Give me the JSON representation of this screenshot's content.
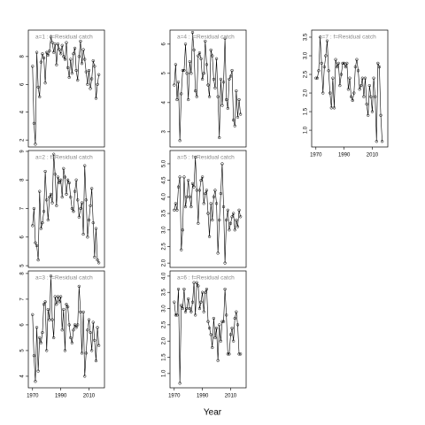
{
  "xlabel": "Year",
  "chart_data": [
    {
      "type": "line",
      "title": "a=1 : f=Residual catch",
      "x": [
        1970,
        1971,
        1972,
        1973,
        1974,
        1975,
        1976,
        1977,
        1978,
        1979,
        1980,
        1981,
        1982,
        1983,
        1984,
        1985,
        1986,
        1987,
        1988,
        1989,
        1990,
        1991,
        1992,
        1993,
        1994,
        1995,
        1996,
        1997,
        1998,
        1999,
        2000,
        2001,
        2002,
        2003,
        2004,
        2005,
        2006,
        2007,
        2008,
        2009,
        2010,
        2011,
        2012,
        2013,
        2014,
        2015,
        2016,
        2017
      ],
      "values": [
        7.3,
        3.2,
        1.7,
        8.3,
        5.8,
        5.1,
        7.6,
        8.2,
        7.9,
        6.1,
        8.3,
        8.1,
        8.4,
        9.4,
        9.0,
        8.3,
        8.9,
        7.4,
        8.9,
        8.5,
        8.2,
        8.8,
        8.0,
        7.8,
        9.0,
        7.2,
        6.5,
        7.8,
        6.8,
        8.2,
        8.6,
        7.0,
        6.3,
        8.0,
        9.1,
        7.5,
        8.5,
        7.8,
        6.9,
        6.0,
        7.0,
        5.7,
        6.4,
        7.7,
        7.3,
        5.0,
        6.0,
        6.7
      ],
      "xlim": [
        1967,
        2021
      ],
      "ylim": [
        1.5,
        9.9
      ],
      "yticks": [
        2,
        4,
        6,
        8
      ]
    },
    {
      "type": "line",
      "title": "a=2 : f=Residual catch",
      "x": [
        1970,
        1971,
        1972,
        1973,
        1974,
        1975,
        1976,
        1977,
        1978,
        1979,
        1980,
        1981,
        1982,
        1983,
        1984,
        1985,
        1986,
        1987,
        1988,
        1989,
        1990,
        1991,
        1992,
        1993,
        1994,
        1995,
        1996,
        1997,
        1998,
        1999,
        2000,
        2001,
        2002,
        2003,
        2004,
        2005,
        2006,
        2007,
        2008,
        2009,
        2010,
        2011,
        2012,
        2013,
        2014,
        2015,
        2016,
        2017
      ],
      "values": [
        6.4,
        7.0,
        5.8,
        5.7,
        5.2,
        7.6,
        6.3,
        6.5,
        6.9,
        8.3,
        7.3,
        6.6,
        7.4,
        7.5,
        7.2,
        8.9,
        8.2,
        7.1,
        8.1,
        7.9,
        8.0,
        7.4,
        8.4,
        8.1,
        7.5,
        8.0,
        7.9,
        7.4,
        7.0,
        6.9,
        7.6,
        8.0,
        7.3,
        6.7,
        7.0,
        7.2,
        6.1,
        8.5,
        7.3,
        6.0,
        6.6,
        7.1,
        7.7,
        6.5,
        5.3,
        6.3,
        5.2,
        5.1
      ],
      "xlim": [
        1967,
        2021
      ],
      "ylim": [
        4.94,
        9.03
      ],
      "yticks": [
        5,
        6,
        7,
        8,
        9
      ]
    },
    {
      "type": "line",
      "title": "a=3 : f=Residual catch",
      "x": [
        1970,
        1971,
        1972,
        1973,
        1974,
        1975,
        1976,
        1977,
        1978,
        1979,
        1980,
        1981,
        1982,
        1983,
        1984,
        1985,
        1986,
        1987,
        1988,
        1989,
        1990,
        1991,
        1992,
        1993,
        1994,
        1995,
        1996,
        1997,
        1998,
        1999,
        2000,
        2001,
        2002,
        2003,
        2004,
        2005,
        2006,
        2007,
        2008,
        2009,
        2010,
        2011,
        2012,
        2013,
        2014,
        2015,
        2016,
        2017
      ],
      "values": [
        6.4,
        4.8,
        3.8,
        5.9,
        4.2,
        5.5,
        5.3,
        5.7,
        6.8,
        6.9,
        5.0,
        6.6,
        6.2,
        7.9,
        6.2,
        5.5,
        7.1,
        6.8,
        7.1,
        6.9,
        7.1,
        5.8,
        6.6,
        5.0,
        6.8,
        6.7,
        6.0,
        5.5,
        5.3,
        5.8,
        6.0,
        5.9,
        6.0,
        7.5,
        6.5,
        4.9,
        6.5,
        4.0,
        4.9,
        5.8,
        6.2,
        5.7,
        5.0,
        6.1,
        5.4,
        4.6,
        5.9,
        5.2
      ],
      "xlim": [
        1967,
        2021
      ],
      "ylim": [
        3.55,
        8.1
      ],
      "xticks": [
        1970,
        1990,
        2010
      ],
      "yticks": [
        4,
        5,
        6,
        7,
        8
      ]
    },
    {
      "type": "line",
      "title": "a=4 : f=Residual catch",
      "x": [
        1970,
        1971,
        1972,
        1973,
        1974,
        1975,
        1976,
        1977,
        1978,
        1979,
        1980,
        1981,
        1982,
        1983,
        1984,
        1985,
        1986,
        1987,
        1988,
        1989,
        1990,
        1991,
        1992,
        1993,
        1994,
        1995,
        1996,
        1997,
        1998,
        1999,
        2000,
        2001,
        2002,
        2003,
        2004,
        2005,
        2006,
        2007,
        2008,
        2009,
        2010,
        2011,
        2012,
        2013,
        2014,
        2015,
        2016,
        2017
      ],
      "values": [
        4.6,
        5.3,
        4.1,
        4.7,
        2.7,
        4.3,
        5.1,
        5.1,
        6.0,
        5.0,
        4.1,
        5.4,
        5.0,
        6.4,
        5.8,
        4.4,
        4.2,
        5.6,
        5.7,
        5.5,
        4.8,
        5.0,
        6.1,
        5.3,
        4.6,
        4.2,
        5.8,
        5.6,
        4.8,
        4.5,
        5.5,
        4.2,
        2.8,
        4.8,
        3.9,
        4.7,
        6.2,
        4.1,
        3.8,
        4.8,
        4.9,
        5.1,
        3.4,
        3.2,
        4.4,
        3.5,
        4.1,
        3.6
      ],
      "xlim": [
        1967,
        2021
      ],
      "ylim": [
        2.48,
        6.48
      ],
      "yticks": [
        3,
        4,
        5,
        6
      ]
    },
    {
      "type": "line",
      "title": "a=5 : f=Residual catch",
      "x": [
        1970,
        1971,
        1972,
        1973,
        1974,
        1975,
        1976,
        1977,
        1978,
        1979,
        1980,
        1981,
        1982,
        1983,
        1984,
        1985,
        1986,
        1987,
        1988,
        1989,
        1990,
        1991,
        1992,
        1993,
        1994,
        1995,
        1996,
        1997,
        1998,
        1999,
        2000,
        2001,
        2002,
        2003,
        2004,
        2005,
        2006,
        2007,
        2008,
        2009,
        2010,
        2011,
        2012,
        2013,
        2014,
        2015,
        2016,
        2017
      ],
      "values": [
        3.6,
        3.8,
        3.6,
        4.3,
        4.6,
        2.4,
        3.0,
        4.6,
        3.7,
        4.0,
        4.5,
        4.0,
        3.7,
        4.4,
        4.3,
        5.2,
        4.2,
        3.2,
        4.2,
        4.5,
        4.6,
        3.8,
        4.1,
        4.2,
        3.5,
        2.8,
        3.8,
        3.3,
        4.0,
        4.2,
        3.8,
        2.3,
        3.3,
        4.1,
        5.0,
        3.7,
        2.0,
        3.3,
        3.6,
        3.0,
        3.2,
        3.4,
        3.5,
        3.0,
        3.3,
        3.1,
        3.6,
        3.4
      ],
      "xlim": [
        1967,
        2021
      ],
      "ylim": [
        1.87,
        5.4
      ],
      "yticks": [
        {
          "value": 2,
          "label": "2.0"
        },
        2.5,
        {
          "value": 3,
          "label": "3.0"
        },
        3.5,
        {
          "value": 4,
          "label": "4.0"
        },
        4.5,
        {
          "value": 5,
          "label": "5.0"
        }
      ]
    },
    {
      "type": "line",
      "title": "a=6 : f=Residual catch",
      "x": [
        1970,
        1971,
        1972,
        1973,
        1974,
        1975,
        1976,
        1977,
        1978,
        1979,
        1980,
        1981,
        1982,
        1983,
        1984,
        1985,
        1986,
        1987,
        1988,
        1989,
        1990,
        1991,
        1992,
        1993,
        1994,
        1995,
        1996,
        1997,
        1998,
        1999,
        2000,
        2001,
        2002,
        2003,
        2004,
        2005,
        2006,
        2007,
        2008,
        2009,
        2010,
        2011,
        2012,
        2013,
        2014,
        2015,
        2016,
        2017
      ],
      "values": [
        3.2,
        2.8,
        2.8,
        3.6,
        0.7,
        3.1,
        3.0,
        3.6,
        2.9,
        3.0,
        3.3,
        3.0,
        2.9,
        3.2,
        3.8,
        2.8,
        3.8,
        3.7,
        3.0,
        3.2,
        3.5,
        2.9,
        3.5,
        3.6,
        2.6,
        2.4,
        2.2,
        1.8,
        2.7,
        2.1,
        2.4,
        1.4,
        2.5,
        2.0,
        2.6,
        2.6,
        3.6,
        2.8,
        1.6,
        1.6,
        2.2,
        2.4,
        2.0,
        2.7,
        2.9,
        2.5,
        1.6,
        1.6
      ],
      "xlim": [
        1967,
        2021
      ],
      "ylim": [
        0.56,
        4.16
      ],
      "xticks": [
        1970,
        1990,
        2010
      ],
      "yticks": [
        {
          "value": 1,
          "label": "1.0"
        },
        1.5,
        {
          "value": 2,
          "label": "2.0"
        },
        2.5,
        {
          "value": 3,
          "label": "3.0"
        },
        3.5,
        {
          "value": 4,
          "label": "4.0"
        }
      ]
    },
    {
      "type": "line",
      "title": "a=7 : f=Residual catch",
      "x": [
        1970,
        1971,
        1972,
        1973,
        1974,
        1975,
        1976,
        1977,
        1978,
        1979,
        1980,
        1981,
        1982,
        1983,
        1984,
        1985,
        1986,
        1987,
        1988,
        1989,
        1990,
        1991,
        1992,
        1993,
        1994,
        1995,
        1996,
        1997,
        1998,
        1999,
        2000,
        2001,
        2002,
        2003,
        2004,
        2005,
        2006,
        2007,
        2008,
        2009,
        2010,
        2011,
        2012,
        2013,
        2014,
        2015,
        2016,
        2017
      ],
      "values": [
        2.4,
        2.4,
        2.6,
        3.5,
        2.8,
        2.0,
        2.7,
        3.0,
        3.4,
        2.6,
        2.0,
        1.6,
        2.4,
        1.6,
        2.9,
        2.7,
        2.8,
        2.2,
        2.5,
        2.8,
        2.8,
        2.7,
        2.8,
        2.1,
        2.4,
        1.9,
        1.8,
        2.0,
        2.7,
        2.9,
        2.6,
        2.1,
        2.2,
        2.4,
        1.9,
        2.4,
        1.7,
        1.4,
        2.2,
        1.9,
        1.5,
        2.4,
        1.9,
        0.7,
        2.8,
        2.7,
        1.4,
        0.7
      ],
      "xlim": [
        1967,
        2021
      ],
      "ylim": [
        0.55,
        3.69
      ],
      "xticks": [
        1970,
        1990,
        2010
      ],
      "yticks": [
        {
          "value": 1,
          "label": "1.0"
        },
        1.5,
        {
          "value": 2,
          "label": "2.0"
        },
        2.5,
        {
          "value": 3,
          "label": "3.0"
        },
        3.5
      ]
    }
  ]
}
